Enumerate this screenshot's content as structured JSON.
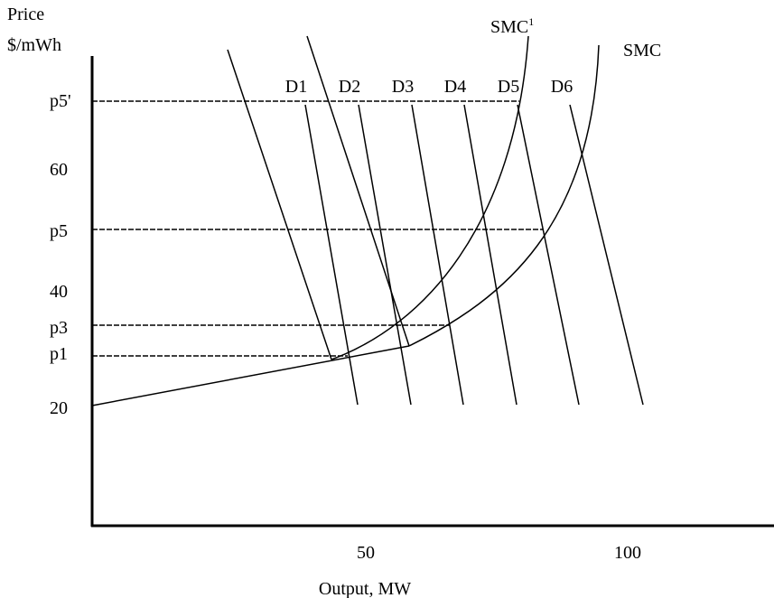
{
  "axis": {
    "y_title": "Price",
    "y_unit": "$/mWh",
    "x_title": "Output, MW",
    "y_labels": [
      "p5'",
      "60",
      "p5",
      "40",
      "p3",
      "p1",
      "20"
    ],
    "x_labels": [
      "50",
      "100"
    ]
  },
  "demand_labels": [
    "D1",
    "D2",
    "D3",
    "D4",
    "D5",
    "D6"
  ],
  "supply_labels": {
    "smc_prime": "SMC",
    "smc_prime_sup": "1",
    "smc": "SMC"
  }
}
